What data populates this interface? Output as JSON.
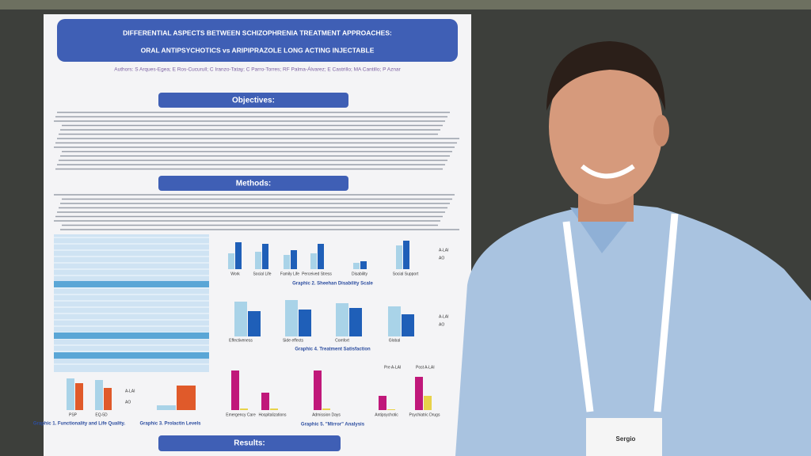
{
  "poster": {
    "title": [
      "DIFFERENTIAL ASPECTS BETWEEN SCHIZOPHRENIA TREATMENT APPROACHES:",
      "ORAL ANTIPSYCHOTICS vs ARIPIPRAZOLE LONG ACTING INJECTABLE"
    ],
    "authors": "Authors: S Arques-Egea; E Ros-Cucurull; C Iranzo-Tatay; C Parro-Torres; RF Palma-Álvarez; E Castrillo; MA Cantillo; P Aznar",
    "sections": {
      "objectives": "Objectives:",
      "methods": "Methods:",
      "results": "Results:"
    },
    "graphics": [
      "Graphic 2. Sheehan Disability Scale",
      "Graphic 4. Treatment Satisfaction",
      "Graphic 1. Functionality and Life Quality.",
      "Graphic 3. Prolactin Levels",
      "Graphic 5. \"Mirror\" Analysis"
    ],
    "chart_labels": [
      "Work",
      "Social Life",
      "Family Life",
      "Perceived Stress",
      "Disability",
      "Social Support",
      "Effectiveness",
      "Side effects",
      "Comfort",
      "Global",
      "PSP",
      "EQ-5D",
      "Emergency Care",
      "Hospitalizations",
      "Admission Days",
      "Antipsychotic",
      "Psychiatric Drugs"
    ],
    "legends": [
      "A-LAI",
      "AO",
      "A-LAI",
      "AO",
      "A-LAI",
      "AO",
      "Pre A-LAI",
      "Post A-LAI"
    ]
  },
  "badge": {
    "name": "Sergio"
  }
}
